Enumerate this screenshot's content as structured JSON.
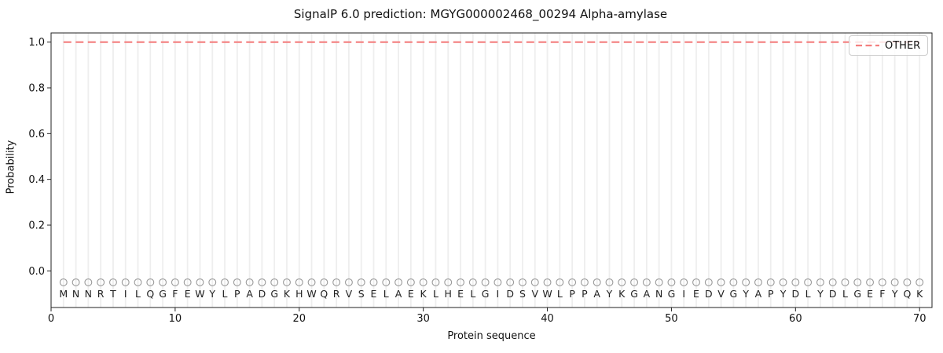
{
  "chart_data": {
    "type": "line",
    "title": "SignalP 6.0 prediction: MGYG000002468_00294 Alpha-amylase",
    "xlabel": "Protein sequence",
    "ylabel": "Probability",
    "xlim": [
      0,
      71
    ],
    "ylim": [
      -0.16,
      1.04
    ],
    "xticks": [
      0,
      10,
      20,
      30,
      40,
      50,
      60,
      70
    ],
    "yticks": [
      0.0,
      0.2,
      0.4,
      0.6,
      0.8,
      1.0
    ],
    "ytick_labels": [
      "0.0",
      "0.2",
      "0.4",
      "0.6",
      "0.8",
      "1.0"
    ],
    "grid": {
      "vertical_per_residue": true,
      "horizontal": false,
      "color": "#eeeeee"
    },
    "legend": {
      "position": "upper-right",
      "entries": [
        {
          "label": "OTHER",
          "line_style": "dashed",
          "color": "#f47f7f"
        }
      ]
    },
    "series": [
      {
        "name": "OTHER",
        "style": "dashed",
        "color": "#f47f7f",
        "x": [
          1,
          70
        ],
        "y": [
          1.0,
          1.0
        ]
      }
    ],
    "sequence": "MNNRTILQGFEWYLPADGKHWQRVSELAEKLHELGIDSVWLPPAYKGANGIEDVGYAPYDLYDLGEFYQK",
    "sequence_markers": {
      "shape": "open-circle",
      "color": "#9a9a9a",
      "y": -0.05,
      "letter_y": -0.1
    },
    "colors": {
      "background": "#ffffff",
      "spine": "#222222",
      "text": "#111111",
      "letters": "#1f1f1f"
    }
  }
}
